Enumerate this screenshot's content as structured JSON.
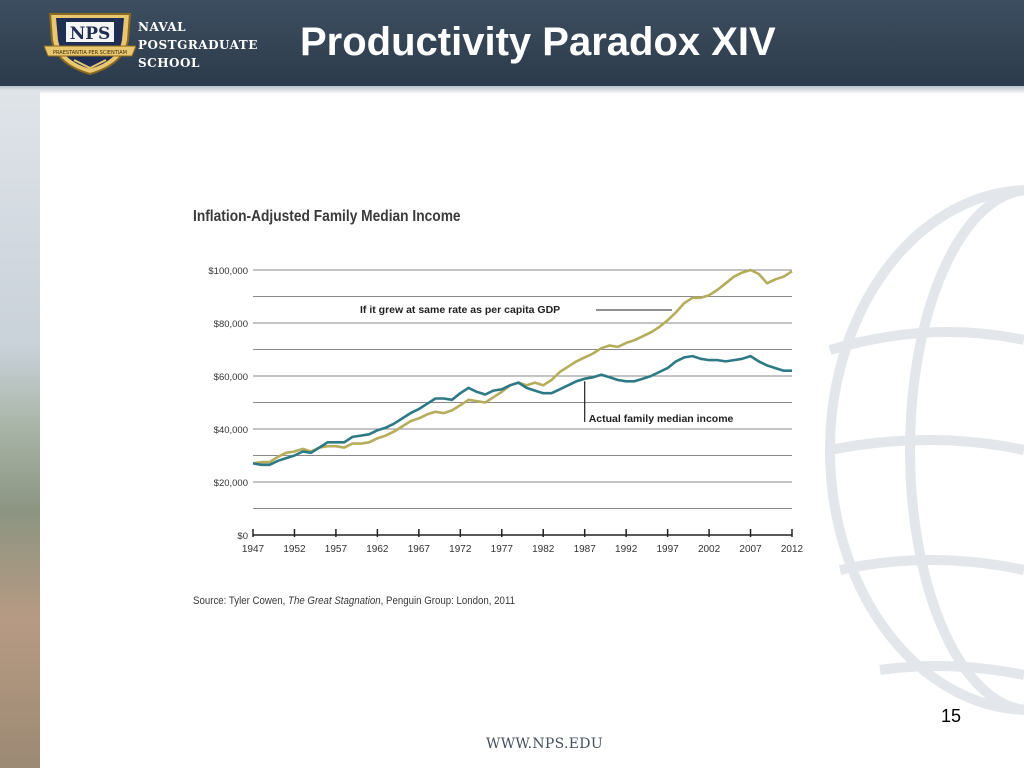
{
  "header": {
    "logo_text": "NPS",
    "logo_ribbon": "PRAESTANTIA PER SCIENTIAM",
    "school_line1": "NAVAL",
    "school_line2": "POSTGRADUATE",
    "school_line3": "SCHOOL",
    "title": "Productivity Paradox XIV"
  },
  "footer": {
    "page_number": "15",
    "url": "WWW.NPS.EDU"
  },
  "colors": {
    "header_bg": "#34455a",
    "gdp_line": "#b5ad5c",
    "median_line": "#2d7a86",
    "grid": "#8a8a8a"
  },
  "chart_data": {
    "type": "line",
    "title": "Inflation-Adjusted Family Median Income",
    "source_prefix": "Source: Tyler Cowen, ",
    "source_italic": "The Great Stagnation",
    "source_suffix": ", Penguin Group: London, 2011",
    "ylim": [
      0,
      100000
    ],
    "xlim": [
      1947,
      2012
    ],
    "y_ticks": [
      {
        "value": 0,
        "label": "$0"
      },
      {
        "value": 20000,
        "label": "$20,000"
      },
      {
        "value": 40000,
        "label": "$40,000"
      },
      {
        "value": 60000,
        "label": "$60,000"
      },
      {
        "value": 80000,
        "label": "$80,000"
      },
      {
        "value": 100000,
        "label": "$100,000"
      }
    ],
    "y_gridlines": [
      10000,
      20000,
      30000,
      40000,
      50000,
      60000,
      70000,
      80000,
      90000,
      100000
    ],
    "x_ticks": [
      1947,
      1952,
      1957,
      1962,
      1967,
      1972,
      1977,
      1982,
      1987,
      1992,
      1997,
      2002,
      2007,
      2012
    ],
    "annotations": [
      {
        "text": "If it grew at same rate as per capita GDP",
        "series": "gdp",
        "x": 1987
      },
      {
        "text": "Actual family median income",
        "series": "median",
        "x": 1987
      }
    ],
    "series": [
      {
        "key": "gdp",
        "x": [
          1947,
          1948,
          1949,
          1950,
          1951,
          1952,
          1953,
          1954,
          1955,
          1956,
          1957,
          1958,
          1959,
          1960,
          1961,
          1962,
          1963,
          1964,
          1965,
          1966,
          1967,
          1968,
          1969,
          1970,
          1971,
          1972,
          1973,
          1974,
          1975,
          1976,
          1977,
          1978,
          1979,
          1980,
          1981,
          1982,
          1983,
          1984,
          1985,
          1986,
          1987,
          1988,
          1989,
          1990,
          1991,
          1992,
          1993,
          1994,
          1995,
          1996,
          1997,
          1998,
          1999,
          2000,
          2001,
          2002,
          2003,
          2004,
          2005,
          2006,
          2007,
          2008,
          2009,
          2010,
          2011,
          2012
        ],
        "y": [
          27000,
          27500,
          27500,
          29500,
          31000,
          31500,
          32500,
          31500,
          33000,
          33500,
          33500,
          33000,
          34500,
          34500,
          35000,
          36500,
          37500,
          39000,
          41000,
          43000,
          44000,
          45500,
          46500,
          46000,
          47000,
          49000,
          51000,
          50500,
          50000,
          52000,
          54000,
          56500,
          57500,
          56500,
          57500,
          56500,
          58500,
          61500,
          63500,
          65500,
          67000,
          68500,
          70500,
          71500,
          71000,
          72500,
          73500,
          75000,
          76500,
          78500,
          81000,
          84000,
          87500,
          89500,
          89500,
          90500,
          92500,
          95000,
          97500,
          99000,
          100000,
          98500,
          95000,
          96500,
          97500,
          99500
        ]
      },
      {
        "key": "median",
        "x": [
          1947,
          1948,
          1949,
          1950,
          1951,
          1952,
          1953,
          1954,
          1955,
          1956,
          1957,
          1958,
          1959,
          1960,
          1961,
          1962,
          1963,
          1964,
          1965,
          1966,
          1967,
          1968,
          1969,
          1970,
          1971,
          1972,
          1973,
          1974,
          1975,
          1976,
          1977,
          1978,
          1979,
          1980,
          1981,
          1982,
          1983,
          1984,
          1985,
          1986,
          1987,
          1988,
          1989,
          1990,
          1991,
          1992,
          1993,
          1994,
          1995,
          1996,
          1997,
          1998,
          1999,
          2000,
          2001,
          2002,
          2003,
          2004,
          2005,
          2006,
          2007,
          2008,
          2009,
          2010,
          2011,
          2012
        ],
        "y": [
          27000,
          26500,
          26500,
          28000,
          29000,
          30000,
          31500,
          31000,
          33000,
          35000,
          35000,
          35000,
          37000,
          37500,
          38000,
          39500,
          40500,
          42000,
          44000,
          46000,
          47500,
          49500,
          51500,
          51500,
          51000,
          53500,
          55500,
          54000,
          53000,
          54500,
          55000,
          56500,
          57500,
          55500,
          54500,
          53500,
          53500,
          55000,
          56500,
          58000,
          59000,
          59500,
          60500,
          59500,
          58500,
          58000,
          58000,
          59000,
          60000,
          61500,
          63000,
          65500,
          67000,
          67500,
          66500,
          66000,
          66000,
          65500,
          66000,
          66500,
          67500,
          65500,
          64000,
          63000,
          62000,
          62000
        ]
      }
    ]
  }
}
